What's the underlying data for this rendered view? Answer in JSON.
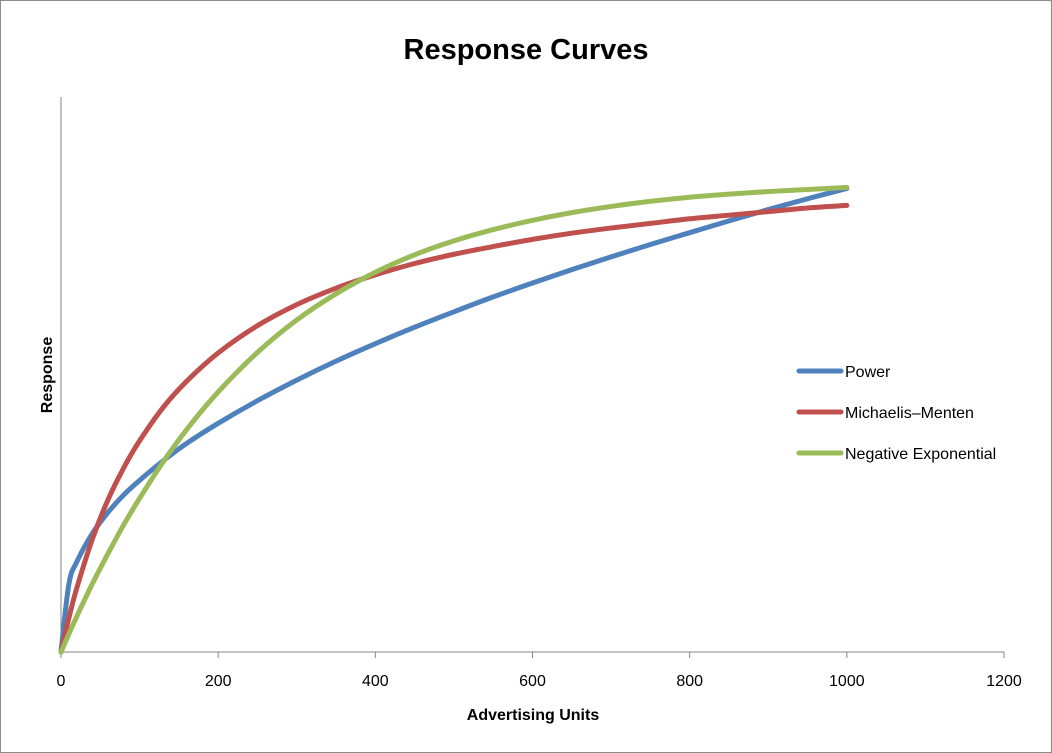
{
  "chart_data": {
    "type": "line",
    "title": "Response Curves",
    "xlabel": "Advertising Units",
    "ylabel": "Response",
    "xlim": [
      0,
      1200
    ],
    "ylim": [
      0,
      1.08
    ],
    "x_ticks": [
      "0",
      "200",
      "400",
      "600",
      "800",
      "1000",
      "1200"
    ],
    "x_tick_values": [
      0,
      200,
      400,
      600,
      800,
      1000,
      1200
    ],
    "y_ticks_shown": false,
    "grid": false,
    "legend_position": "right",
    "x": [
      0,
      10,
      20,
      40,
      60,
      80,
      100,
      130,
      160,
      200,
      250,
      300,
      350,
      400,
      450,
      500,
      550,
      600,
      650,
      700,
      750,
      800,
      850,
      900,
      950,
      1000
    ],
    "series": [
      {
        "name": "Power",
        "color": "#4f81bd",
        "values": [
          0.0,
          0.132,
          0.175,
          0.231,
          0.272,
          0.306,
          0.334,
          0.372,
          0.406,
          0.445,
          0.489,
          0.529,
          0.566,
          0.6,
          0.632,
          0.662,
          0.691,
          0.718,
          0.744,
          0.769,
          0.793,
          0.816,
          0.839,
          0.861,
          0.882,
          0.902
        ]
      },
      {
        "name": "Michaelis–Menten",
        "color": "#c0504d",
        "values": [
          0.0,
          0.066,
          0.124,
          0.22,
          0.297,
          0.359,
          0.411,
          0.476,
          0.527,
          0.582,
          0.635,
          0.676,
          0.708,
          0.734,
          0.756,
          0.774,
          0.789,
          0.803,
          0.815,
          0.825,
          0.834,
          0.843,
          0.85,
          0.857,
          0.864,
          0.869
        ]
      },
      {
        "name": "Negative Exponential",
        "color": "#9bbb59",
        "values": [
          0.0,
          0.035,
          0.069,
          0.133,
          0.192,
          0.248,
          0.299,
          0.37,
          0.433,
          0.506,
          0.583,
          0.646,
          0.697,
          0.739,
          0.773,
          0.8,
          0.822,
          0.84,
          0.855,
          0.867,
          0.877,
          0.885,
          0.891,
          0.896,
          0.9,
          0.904
        ]
      }
    ]
  }
}
